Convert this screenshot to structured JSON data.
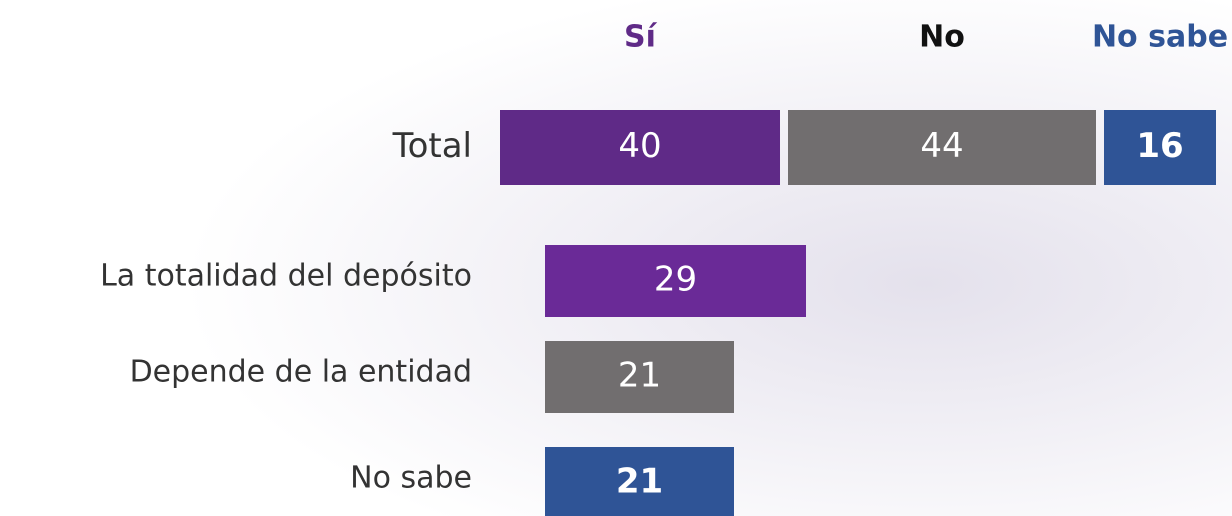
{
  "chart_data": [
    {
      "type": "stacked_bar",
      "categories": [
        "Total"
      ],
      "series": [
        {
          "name": "Sí",
          "color": "#5f2a87",
          "values": [
            40
          ]
        },
        {
          "name": "No",
          "color": "#716e6f",
          "values": [
            44
          ]
        },
        {
          "name": "No sabe",
          "color": "#2f5496",
          "values": [
            16
          ]
        }
      ]
    },
    {
      "type": "bar",
      "categories": [
        "La totalidad del depósito",
        "Depende de la entidad",
        "No sabe"
      ],
      "values": [
        29,
        21,
        21
      ],
      "colors": [
        "#6a2a97",
        "#716e6f",
        "#2f5496"
      ]
    }
  ]
}
